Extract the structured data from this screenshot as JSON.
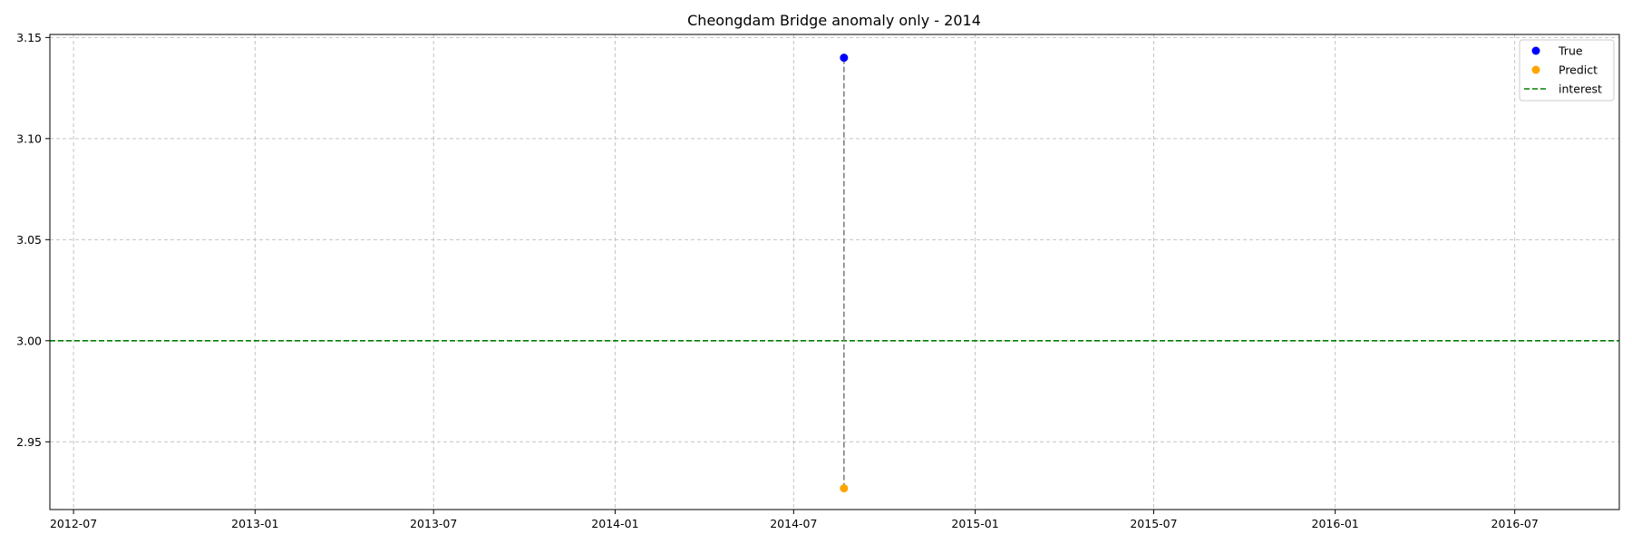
{
  "chart_data": {
    "type": "scatter",
    "title": "Cheongdam Bridge anomaly only - 2014",
    "xlabel": "",
    "ylabel": "",
    "x_axis_type": "date",
    "xlim": [
      "2012-06-07",
      "2016-10-15"
    ],
    "ylim": [
      2.9165,
      3.1515
    ],
    "x_ticks": [
      "2012-07",
      "2013-01",
      "2013-07",
      "2014-01",
      "2014-07",
      "2015-01",
      "2015-07",
      "2016-01",
      "2016-07"
    ],
    "y_ticks": [
      2.95,
      3.0,
      3.05,
      3.1,
      3.15
    ],
    "y_tick_labels": [
      "2.95",
      "3.00",
      "3.05",
      "3.10",
      "3.15"
    ],
    "grid": true,
    "legend_position": "top-right",
    "series": [
      {
        "name": "True",
        "kind": "scatter",
        "color": "#0000ff",
        "points": [
          {
            "x": "2014-08-21",
            "y": 3.14
          }
        ]
      },
      {
        "name": "Predict",
        "kind": "scatter",
        "color": "#ffa500",
        "points": [
          {
            "x": "2014-08-21",
            "y": 2.927
          }
        ]
      },
      {
        "name": "interest",
        "kind": "hline",
        "color": "#008000",
        "style": "dashed",
        "y": 3.0
      }
    ],
    "connectors": [
      {
        "x": "2014-08-21",
        "y_from": 2.927,
        "y_to": 3.14,
        "color": "#808080",
        "style": "dashed"
      }
    ]
  }
}
